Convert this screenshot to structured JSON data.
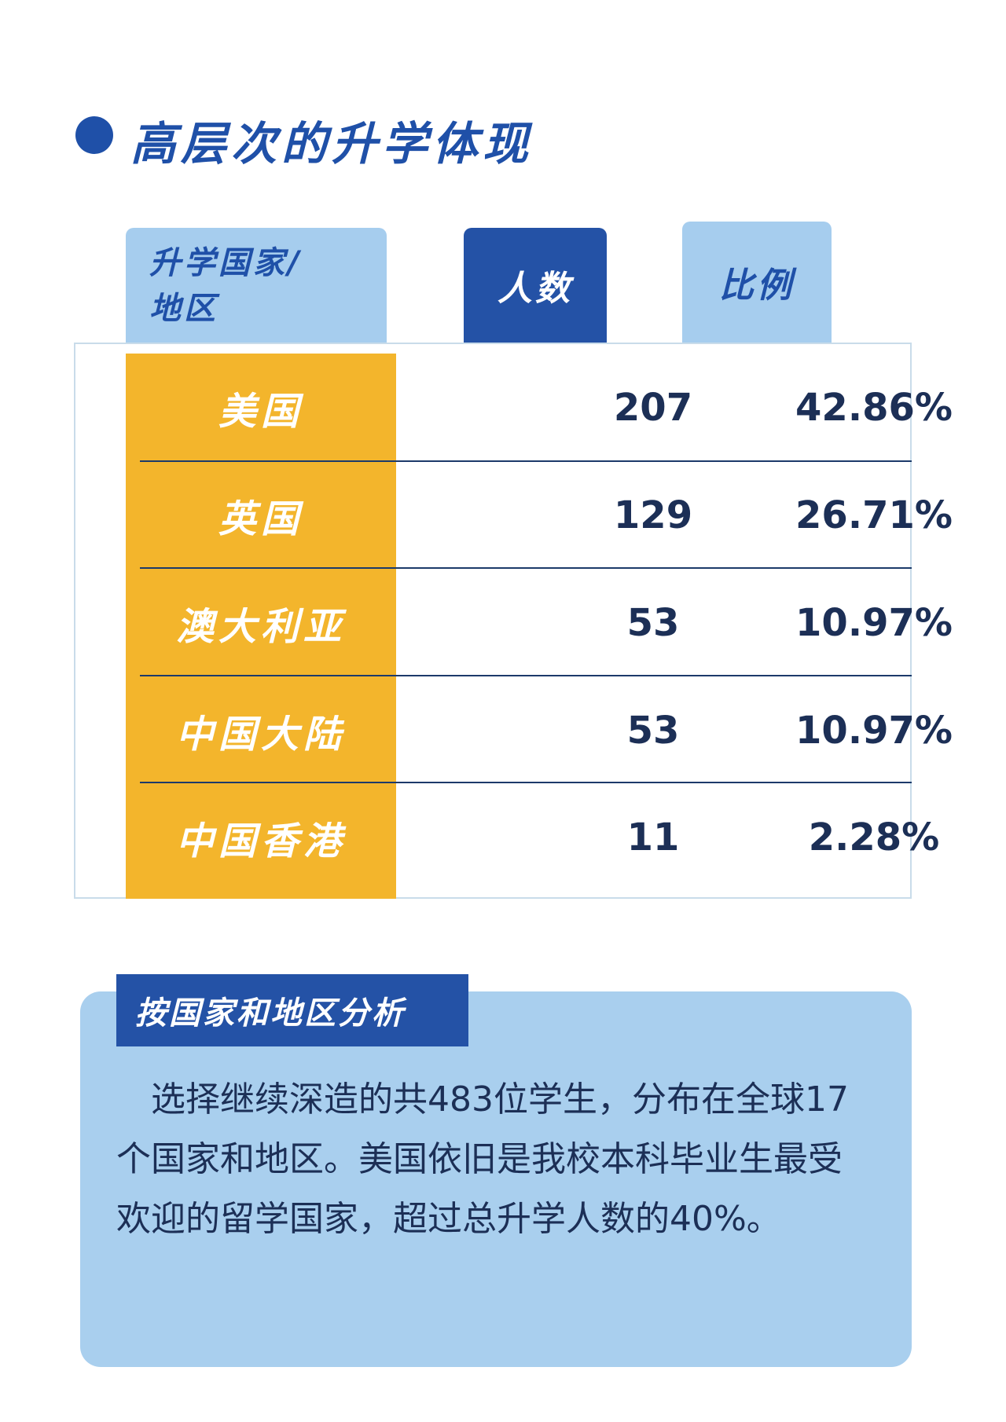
{
  "title": "高层次的升学体现",
  "table": {
    "headers": {
      "region_line1": "升学国家/",
      "region_line2": "地区",
      "count": "人数",
      "ratio": "比例"
    },
    "rows": [
      {
        "region": "美国",
        "count": "207",
        "ratio": "42.86%"
      },
      {
        "region": "英国",
        "count": "129",
        "ratio": "26.71%"
      },
      {
        "region": "澳大利亚",
        "count": "53",
        "ratio": "10.97%"
      },
      {
        "region": "中国大陆",
        "count": "53",
        "ratio": "10.97%"
      },
      {
        "region": "中国香港",
        "count": "11",
        "ratio": "2.28%"
      }
    ]
  },
  "analysis": {
    "tag": "按国家和地区分析",
    "text": "选择继续深造的共483位学生，分布在全球17个国家和地区。美国依旧是我校本科毕业生最受欢迎的留学国家，超过总升学人数的40%。"
  },
  "chart_data": {
    "type": "table",
    "columns": [
      "升学国家/地区",
      "人数",
      "比例"
    ],
    "rows": [
      [
        "美国",
        207,
        "42.86%"
      ],
      [
        "英国",
        129,
        "26.71%"
      ],
      [
        "澳大利亚",
        53,
        "10.97%"
      ],
      [
        "中国大陆",
        53,
        "10.97%"
      ],
      [
        "中国香港",
        11,
        "2.28%"
      ]
    ]
  },
  "colors": {
    "primary_blue": "#1f50a8",
    "light_blue": "#a6cdee",
    "yellow": "#f3b52c",
    "dark_text": "#1c2f56"
  }
}
